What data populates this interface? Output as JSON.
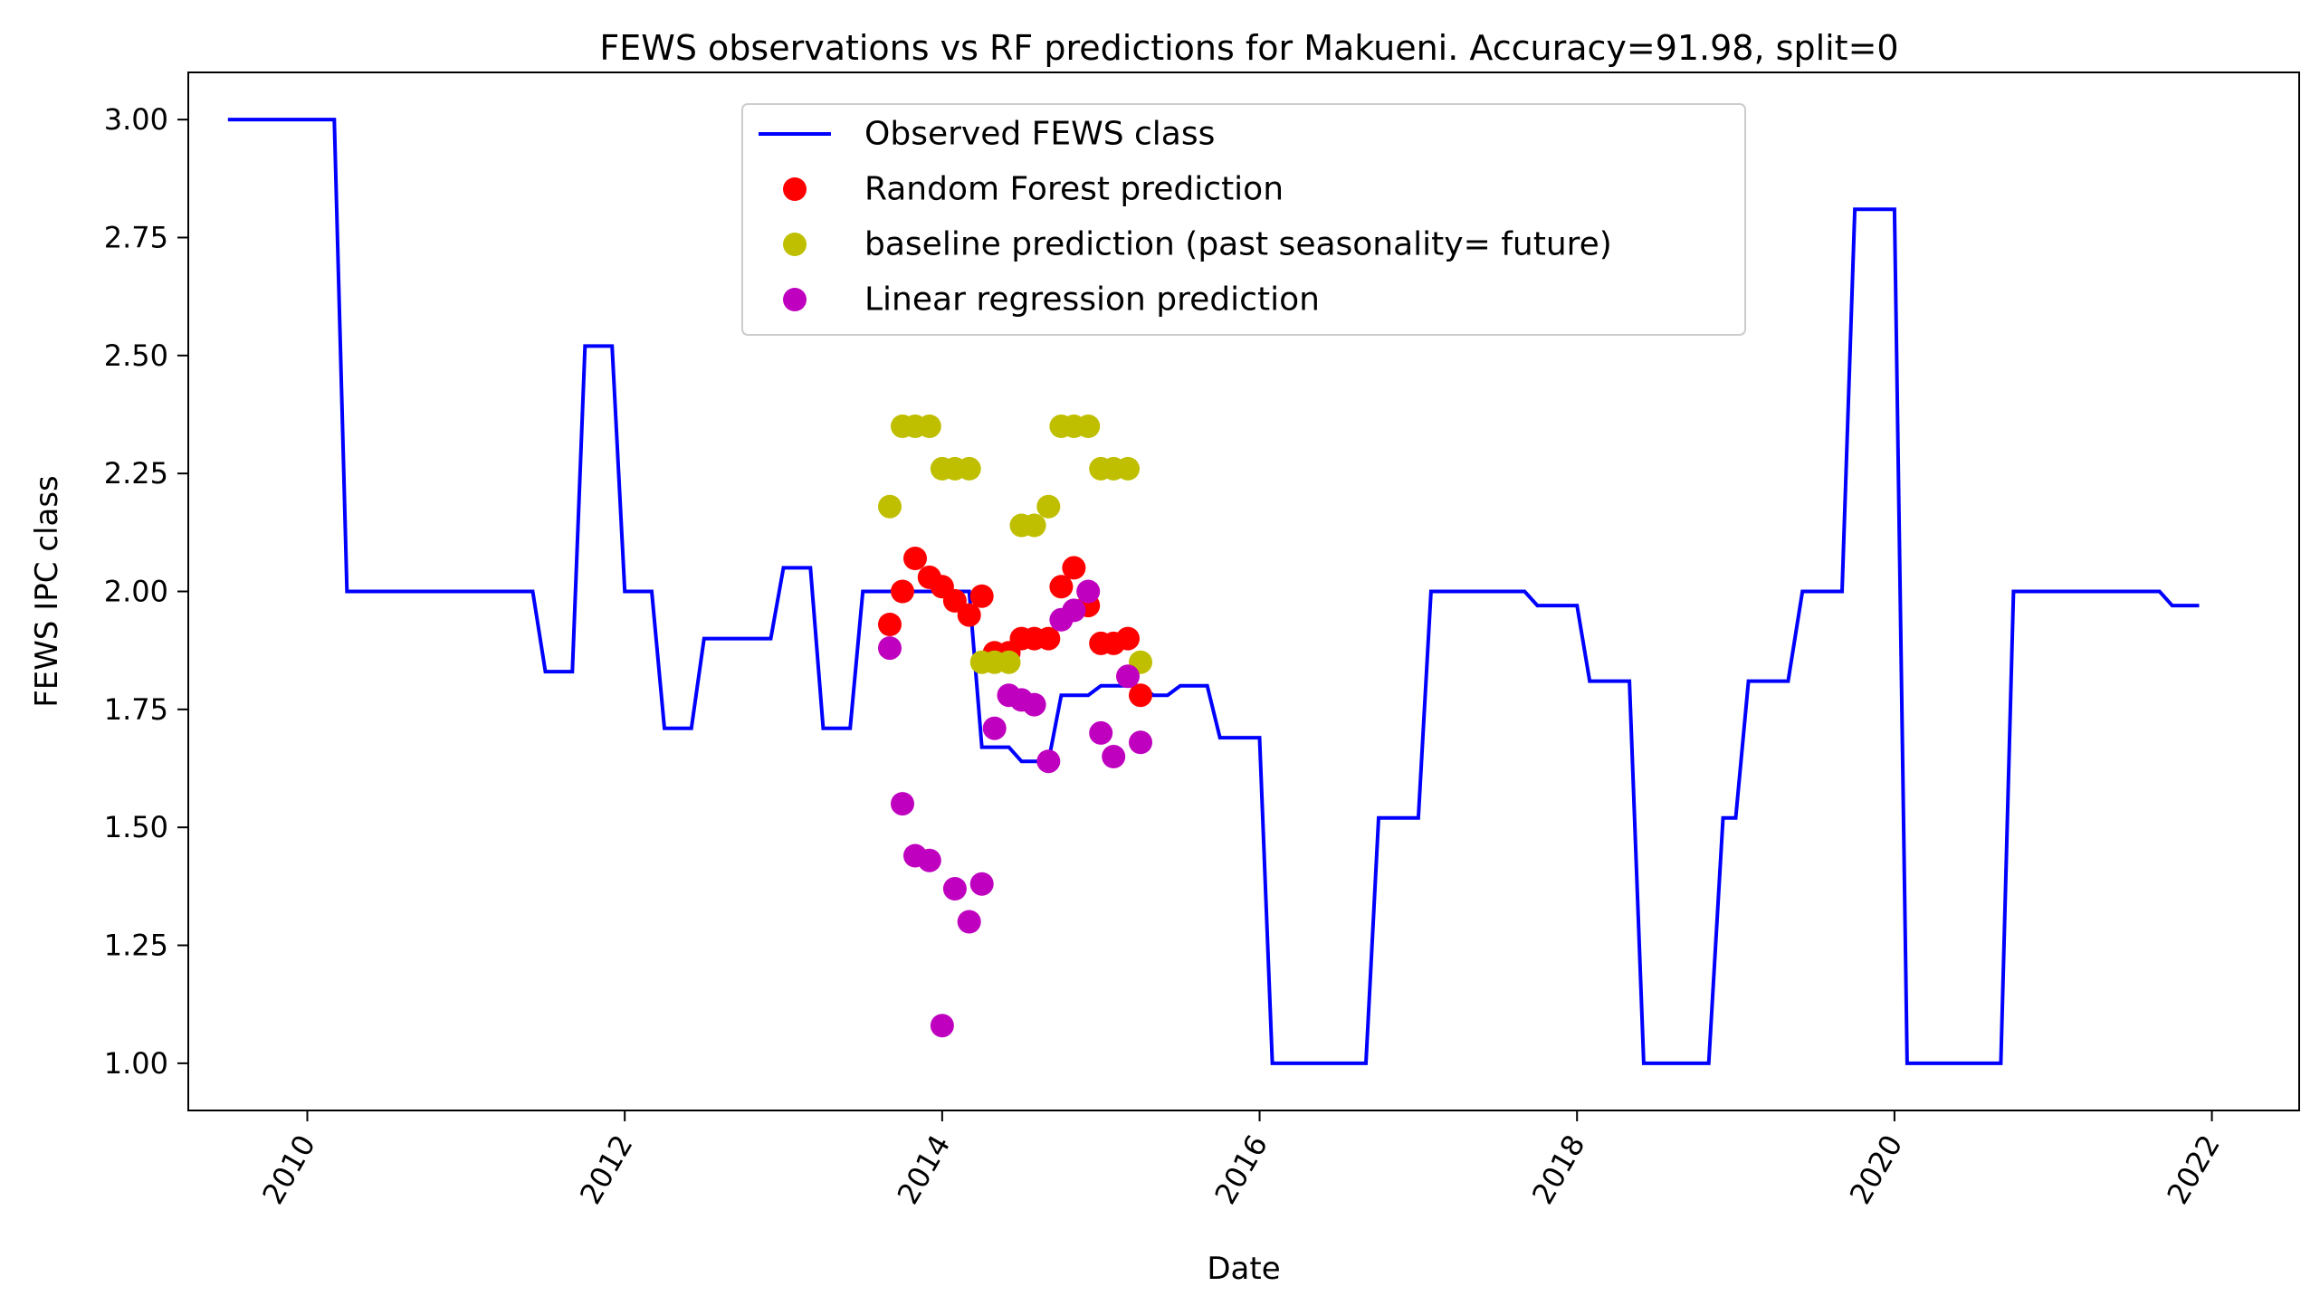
{
  "chart_data": {
    "type": "line",
    "title": "FEWS observations vs RF predictions for Makueni. Accuracy=91.98, split=0",
    "xlabel": "Date",
    "ylabel": "FEWS IPC class",
    "xlim": [
      2009.25,
      2022.55
    ],
    "ylim": [
      0.9,
      3.1
    ],
    "xticks": [
      2010,
      2012,
      2014,
      2016,
      2018,
      2020,
      2022
    ],
    "xtick_labels": [
      "2010",
      "2012",
      "2014",
      "2016",
      "2018",
      "2020",
      "2022"
    ],
    "yticks": [
      1.0,
      1.25,
      1.5,
      1.75,
      2.0,
      2.25,
      2.5,
      2.75,
      3.0
    ],
    "ytick_labels": [
      "1.00",
      "1.25",
      "1.50",
      "1.75",
      "2.00",
      "2.25",
      "2.50",
      "2.75",
      "3.00"
    ],
    "grid": false,
    "legend_position": "upper-center",
    "series": [
      {
        "name": "Observed FEWS class",
        "kind": "line",
        "color": "#0000ff",
        "x": [
          2009.5,
          2010.17,
          2010.25,
          2011.42,
          2011.5,
          2011.67,
          2011.75,
          2011.92,
          2012.0,
          2012.17,
          2012.25,
          2012.42,
          2012.5,
          2012.92,
          2013.0,
          2013.17,
          2013.25,
          2013.42,
          2013.5,
          2013.92,
          2014.0,
          2014.17,
          2014.25,
          2014.42,
          2014.5,
          2014.67,
          2014.75,
          2014.92,
          2015.0,
          2015.25,
          2015.33,
          2015.42,
          2015.5,
          2015.67,
          2015.75,
          2016.0,
          2016.08,
          2016.67,
          2016.75,
          2017.0,
          2017.08,
          2017.67,
          2017.75,
          2018.0,
          2018.08,
          2018.33,
          2018.42,
          2018.83,
          2018.92,
          2019.0,
          2019.08,
          2019.33,
          2019.42,
          2019.67,
          2019.75,
          2020.0,
          2020.08,
          2020.67,
          2020.75,
          2021.67,
          2021.75,
          2021.92
        ],
        "y": [
          3.0,
          3.0,
          2.0,
          2.0,
          1.83,
          1.83,
          2.52,
          2.52,
          2.0,
          2.0,
          1.71,
          1.71,
          1.9,
          1.9,
          2.05,
          2.05,
          1.71,
          1.71,
          2.0,
          2.0,
          2.0,
          2.0,
          1.67,
          1.67,
          1.64,
          1.64,
          1.78,
          1.78,
          1.8,
          1.8,
          1.78,
          1.78,
          1.8,
          1.8,
          1.69,
          1.69,
          1.0,
          1.0,
          1.52,
          1.52,
          2.0,
          2.0,
          1.97,
          1.97,
          1.81,
          1.81,
          1.0,
          1.0,
          1.52,
          1.52,
          1.81,
          1.81,
          2.0,
          2.0,
          2.81,
          2.81,
          1.0,
          1.0,
          2.0,
          2.0,
          1.97,
          1.97
        ]
      },
      {
        "name": "Random Forest prediction",
        "kind": "scatter",
        "color": "#ff0000",
        "x": [
          2013.67,
          2013.75,
          2013.83,
          2013.92,
          2014.0,
          2014.08,
          2014.17,
          2014.25,
          2014.33,
          2014.42,
          2014.5,
          2014.58,
          2014.67,
          2014.75,
          2014.83,
          2014.92,
          2015.0,
          2015.08,
          2015.17,
          2015.25
        ],
        "y": [
          1.93,
          2.0,
          2.07,
          2.03,
          2.01,
          1.98,
          1.95,
          1.99,
          1.87,
          1.87,
          1.9,
          1.9,
          1.9,
          2.01,
          2.05,
          1.97,
          1.89,
          1.89,
          1.9,
          1.78
        ]
      },
      {
        "name": "baseline prediction (past seasonality= future)",
        "kind": "scatter",
        "color": "#bfbf00",
        "x": [
          2013.67,
          2013.75,
          2013.83,
          2013.92,
          2014.0,
          2014.08,
          2014.17,
          2014.25,
          2014.33,
          2014.42,
          2014.5,
          2014.58,
          2014.67,
          2014.75,
          2014.83,
          2014.92,
          2015.0,
          2015.08,
          2015.17,
          2015.25
        ],
        "y": [
          2.18,
          2.35,
          2.35,
          2.35,
          2.26,
          2.26,
          2.26,
          1.85,
          1.85,
          1.85,
          2.14,
          2.14,
          2.18,
          2.35,
          2.35,
          2.35,
          2.26,
          2.26,
          2.26,
          1.85
        ]
      },
      {
        "name": "Linear regression prediction",
        "kind": "scatter",
        "color": "#bf00bf",
        "x": [
          2013.67,
          2013.75,
          2013.83,
          2013.92,
          2014.0,
          2014.08,
          2014.17,
          2014.25,
          2014.33,
          2014.42,
          2014.5,
          2014.58,
          2014.67,
          2014.75,
          2014.83,
          2014.92,
          2015.0,
          2015.08,
          2015.17,
          2015.25
        ],
        "y": [
          1.88,
          1.55,
          1.44,
          1.43,
          1.08,
          1.37,
          1.3,
          1.38,
          1.71,
          1.78,
          1.77,
          1.76,
          1.64,
          1.94,
          1.96,
          2.0,
          1.7,
          1.65,
          1.82,
          1.68
        ]
      }
    ]
  }
}
